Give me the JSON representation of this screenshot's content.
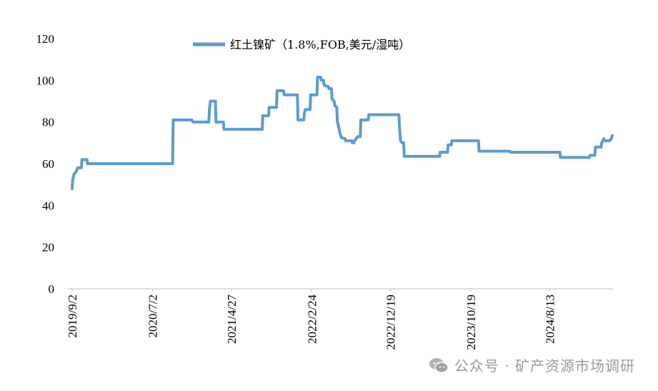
{
  "chart_data": {
    "type": "line",
    "title": "",
    "xlabel": "",
    "ylabel": "",
    "ylim": [
      0,
      120
    ],
    "yticks": [
      0,
      20,
      40,
      60,
      80,
      100,
      120
    ],
    "xticks": [
      "2019/9/2",
      "2020/7/2",
      "2021/4/27",
      "2022/2/24",
      "2022/12/19",
      "2023/10/19",
      "2024/8/13"
    ],
    "grid": false,
    "legend_position": "top-center",
    "series": [
      {
        "name": "红土镍矿（1.8%,FOB,美元/湿吨）",
        "color": "#5b9bd5",
        "points": [
          [
            "2019-09-02",
            48
          ],
          [
            "2019-09-04",
            52
          ],
          [
            "2019-09-09",
            55
          ],
          [
            "2019-09-16",
            56
          ],
          [
            "2019-09-23",
            58
          ],
          [
            "2019-10-07",
            58
          ],
          [
            "2019-10-09",
            62
          ],
          [
            "2019-10-28",
            62
          ],
          [
            "2019-10-30",
            60
          ],
          [
            "2020-02-20",
            60
          ],
          [
            "2020-09-16",
            60
          ],
          [
            "2020-09-18",
            81
          ],
          [
            "2020-11-28",
            81
          ],
          [
            "2020-12-02",
            80
          ],
          [
            "2021-01-31",
            80
          ],
          [
            "2021-02-02",
            86
          ],
          [
            "2021-02-06",
            90
          ],
          [
            "2021-02-25",
            90
          ],
          [
            "2021-02-27",
            80
          ],
          [
            "2021-03-27",
            80
          ],
          [
            "2021-03-29",
            76.5
          ],
          [
            "2021-08-21",
            76.5
          ],
          [
            "2021-08-23",
            83
          ],
          [
            "2021-09-14",
            83
          ],
          [
            "2021-09-16",
            87
          ],
          [
            "2021-10-14",
            87
          ],
          [
            "2021-10-16",
            95
          ],
          [
            "2021-11-10",
            95
          ],
          [
            "2021-11-12",
            93
          ],
          [
            "2022-01-01",
            93
          ],
          [
            "2022-01-03",
            81
          ],
          [
            "2022-01-25",
            81
          ],
          [
            "2022-01-27",
            84
          ],
          [
            "2022-01-31",
            86
          ],
          [
            "2022-02-18",
            86
          ],
          [
            "2022-02-20",
            93
          ],
          [
            "2022-03-16",
            93
          ],
          [
            "2022-03-18",
            101.5
          ],
          [
            "2022-03-30",
            101.5
          ],
          [
            "2022-04-01",
            100
          ],
          [
            "2022-04-10",
            100
          ],
          [
            "2022-04-12",
            97.5
          ],
          [
            "2022-04-28",
            97
          ],
          [
            "2022-04-30",
            96
          ],
          [
            "2022-05-10",
            96
          ],
          [
            "2022-05-12",
            91
          ],
          [
            "2022-05-20",
            90
          ],
          [
            "2022-05-22",
            88
          ],
          [
            "2022-05-30",
            87
          ],
          [
            "2022-06-01",
            80
          ],
          [
            "2022-06-06",
            78
          ],
          [
            "2022-06-10",
            75
          ],
          [
            "2022-06-16",
            72.5
          ],
          [
            "2022-06-30",
            72
          ],
          [
            "2022-07-02",
            71
          ],
          [
            "2022-07-26",
            71
          ],
          [
            "2022-07-28",
            70
          ],
          [
            "2022-08-03",
            70
          ],
          [
            "2022-08-05",
            71
          ],
          [
            "2022-08-17",
            73
          ],
          [
            "2022-08-27",
            73
          ],
          [
            "2022-08-29",
            81
          ],
          [
            "2022-09-26",
            81
          ],
          [
            "2022-09-28",
            83.5
          ],
          [
            "2023-01-20",
            83.5
          ],
          [
            "2023-01-22",
            78
          ],
          [
            "2023-01-26",
            71
          ],
          [
            "2023-02-01",
            70
          ],
          [
            "2023-02-07",
            70
          ],
          [
            "2023-02-09",
            63.5
          ],
          [
            "2023-06-23",
            63.5
          ],
          [
            "2023-06-25",
            65.5
          ],
          [
            "2023-07-23",
            65.5
          ],
          [
            "2023-07-25",
            69
          ],
          [
            "2023-08-06",
            69
          ],
          [
            "2023-08-08",
            71
          ],
          [
            "2023-11-17",
            71
          ],
          [
            "2023-11-19",
            66
          ],
          [
            "2024-03-15",
            66
          ],
          [
            "2024-03-17",
            65.5
          ],
          [
            "2024-09-20",
            65.5
          ],
          [
            "2024-09-22",
            63
          ],
          [
            "2025-01-10",
            63
          ],
          [
            "2025-01-12",
            64
          ],
          [
            "2025-01-30",
            64
          ],
          [
            "2025-02-01",
            68
          ],
          [
            "2025-02-23",
            68
          ],
          [
            "2025-02-25",
            70
          ],
          [
            "2025-03-05",
            72
          ],
          [
            "2025-03-07",
            71
          ],
          [
            "2025-03-27",
            71
          ],
          [
            "2025-04-02",
            72
          ],
          [
            "2025-04-06",
            73.5
          ]
        ]
      }
    ]
  },
  "watermark": {
    "icon": "wechat-icon",
    "text": "公众号 · 矿产资源市场调研"
  }
}
